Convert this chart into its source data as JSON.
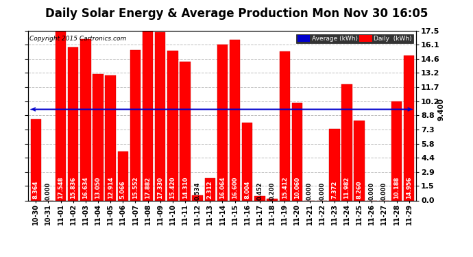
{
  "title": "Daily Solar Energy & Average Production Mon Nov 30 16:05",
  "copyright": "Copyright 2015 Cartronics.com",
  "categories": [
    "10-30",
    "10-31",
    "11-01",
    "11-02",
    "11-03",
    "11-04",
    "11-05",
    "11-06",
    "11-07",
    "11-08",
    "11-09",
    "11-10",
    "11-11",
    "11-12",
    "11-13",
    "11-14",
    "11-15",
    "11-16",
    "11-17",
    "11-18",
    "11-19",
    "11-20",
    "11-21",
    "11-22",
    "11-23",
    "11-24",
    "11-25",
    "11-26",
    "11-27",
    "11-28",
    "11-29"
  ],
  "values": [
    8.364,
    0.0,
    17.548,
    15.836,
    16.634,
    13.05,
    12.914,
    5.066,
    15.552,
    17.882,
    17.33,
    15.42,
    14.31,
    0.534,
    2.312,
    16.064,
    16.6,
    8.004,
    0.452,
    0.2,
    15.412,
    10.06,
    0.0,
    0.0,
    7.372,
    11.982,
    8.26,
    0.0,
    0.0,
    10.188,
    14.956
  ],
  "average": 9.4,
  "bar_color": "#ff0000",
  "average_color": "#0000cd",
  "background_color": "#ffffff",
  "yticks": [
    0.0,
    1.5,
    2.9,
    4.4,
    5.8,
    7.3,
    8.8,
    10.2,
    11.7,
    13.2,
    14.6,
    16.1,
    17.5
  ],
  "ylim": [
    0,
    17.5
  ],
  "grid_color": "#bbbbbb",
  "title_fontsize": 12,
  "tick_fontsize": 7,
  "value_fontsize": 6,
  "avg_text": "9.400"
}
